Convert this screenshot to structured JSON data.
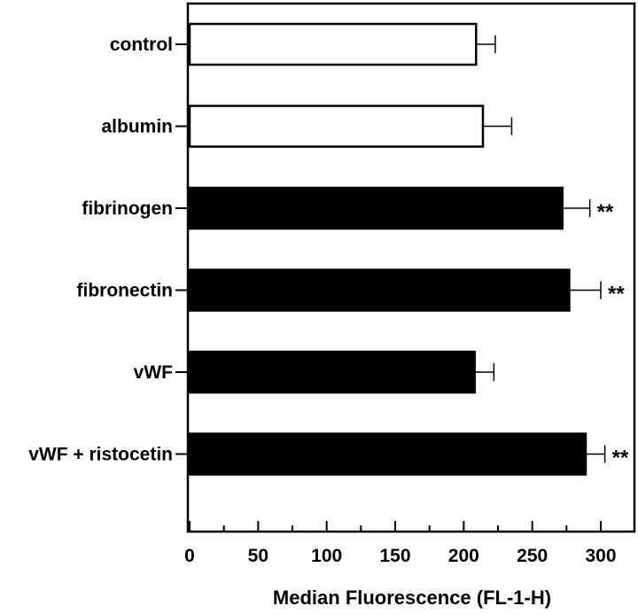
{
  "chart_data": {
    "type": "bar",
    "orientation": "horizontal",
    "categories": [
      "control",
      "albumin",
      "fibrinogen",
      "fibronectin",
      "vWF",
      "vWF + ristocetin"
    ],
    "values": [
      209,
      214,
      272,
      277,
      208,
      289
    ],
    "errors": [
      14,
      21,
      20,
      23,
      14,
      14
    ],
    "bar_colors": [
      "#ffffff",
      "#ffffff",
      "#000000",
      "#000000",
      "#000000",
      "#000000"
    ],
    "significance": [
      "",
      "",
      "**",
      "**",
      "",
      "**"
    ],
    "xlabel": "Median Fluorescence (FL-1-H)",
    "ylabel": "",
    "title": "",
    "xlim": [
      0,
      325
    ],
    "xticks": [
      0,
      50,
      100,
      150,
      200,
      250,
      300
    ],
    "xtick_labels": [
      "0",
      "50",
      "100",
      "150",
      "200",
      "250",
      "300"
    ],
    "grid": false
  }
}
